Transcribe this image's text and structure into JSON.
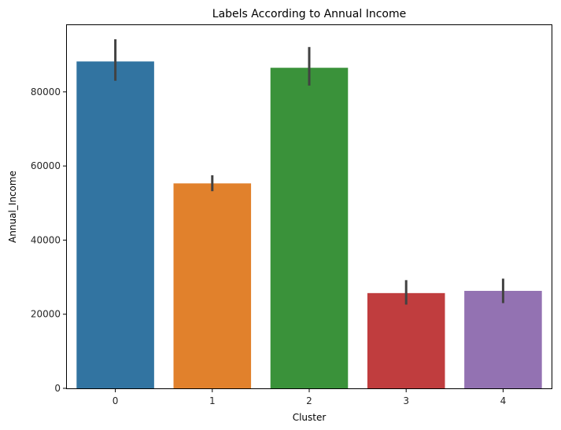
{
  "chart_data": {
    "type": "bar",
    "title": "Labels According to Annual Income",
    "xlabel": "Cluster",
    "ylabel": "Annual_Income",
    "categories": [
      "0",
      "1",
      "2",
      "3",
      "4"
    ],
    "values": [
      88200,
      55300,
      86500,
      25700,
      26300
    ],
    "error_low": [
      83000,
      53200,
      81700,
      22600,
      23000
    ],
    "error_high": [
      94200,
      57500,
      92100,
      29200,
      29600
    ],
    "colors": [
      "#3274a1",
      "#e1812c",
      "#3a923a",
      "#c03d3e",
      "#9372b2"
    ],
    "error_color": "#424242",
    "ylim": [
      0,
      98000
    ],
    "yticks": [
      0,
      20000,
      40000,
      60000,
      80000
    ],
    "yticklabels": [
      "0",
      "20000",
      "40000",
      "60000",
      "80000"
    ],
    "grid": false,
    "legend": "none"
  }
}
